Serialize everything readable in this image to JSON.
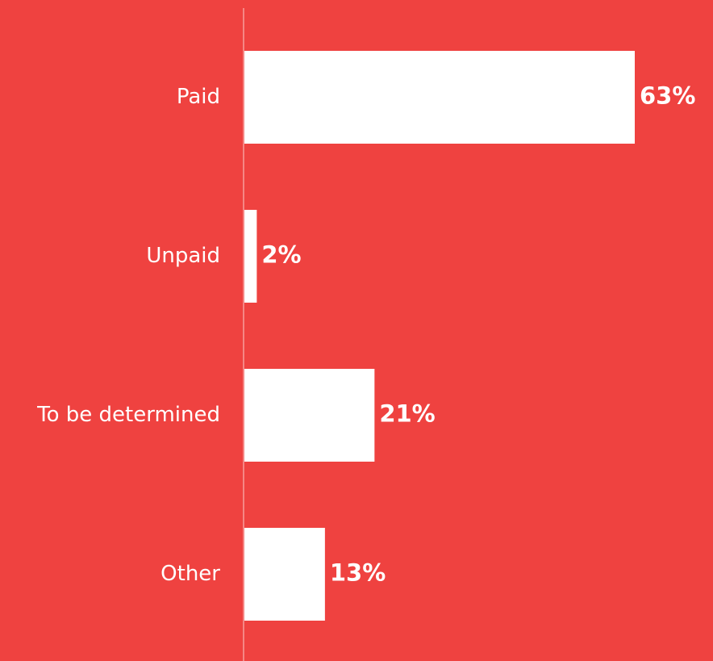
{
  "colors": {
    "background": "#ef4240",
    "bar": "#ffffff",
    "text": "#ffffff",
    "axis": "#f58684"
  },
  "chart_data": {
    "type": "bar",
    "orientation": "horizontal",
    "categories": [
      "Paid",
      "Unpaid",
      "To be determined",
      "Other"
    ],
    "values": [
      63,
      2,
      21,
      13
    ],
    "value_labels": [
      "63%",
      "2%",
      "21%",
      "13%"
    ],
    "unit": "%",
    "title": "",
    "xlabel": "",
    "ylabel": "",
    "xlim": [
      0,
      63
    ],
    "grid": false,
    "legend": "none"
  }
}
